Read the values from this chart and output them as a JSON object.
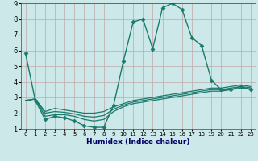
{
  "title": "",
  "xlabel": "Humidex (Indice chaleur)",
  "bg_color": "#cce8e8",
  "grid_color": "#c0a8a8",
  "line_color": "#1a7a6e",
  "xlim": [
    -0.5,
    23.5
  ],
  "ylim": [
    1,
    9
  ],
  "xticks": [
    0,
    1,
    2,
    3,
    4,
    5,
    6,
    7,
    8,
    9,
    10,
    11,
    12,
    13,
    14,
    15,
    16,
    17,
    18,
    19,
    20,
    21,
    22,
    23
  ],
  "yticks": [
    1,
    2,
    3,
    4,
    5,
    6,
    7,
    8,
    9
  ],
  "series": [
    {
      "x": [
        0,
        1,
        2,
        3,
        4,
        5,
        6,
        7,
        8,
        9,
        10,
        11,
        12,
        13,
        14,
        15,
        16,
        17,
        18,
        19,
        20,
        21,
        22,
        23
      ],
      "y": [
        5.8,
        2.8,
        1.6,
        1.8,
        1.7,
        1.5,
        1.2,
        1.1,
        1.1,
        2.5,
        5.3,
        7.8,
        8.0,
        6.1,
        8.7,
        9.0,
        8.6,
        6.8,
        6.3,
        4.1,
        3.5,
        3.5,
        3.7,
        3.5
      ],
      "marker": "D",
      "markersize": 2.5,
      "linewidth": 1.0
    },
    {
      "x": [
        0,
        1,
        2,
        3,
        4,
        5,
        6,
        7,
        8,
        9,
        10,
        11,
        12,
        13,
        14,
        15,
        16,
        17,
        18,
        19,
        20,
        21,
        22,
        23
      ],
      "y": [
        2.8,
        2.9,
        2.1,
        2.3,
        2.2,
        2.1,
        2.0,
        2.0,
        2.1,
        2.4,
        2.6,
        2.8,
        2.9,
        3.0,
        3.1,
        3.2,
        3.3,
        3.4,
        3.5,
        3.6,
        3.6,
        3.7,
        3.8,
        3.7
      ],
      "marker": null,
      "markersize": 0,
      "linewidth": 0.9
    },
    {
      "x": [
        0,
        1,
        2,
        3,
        4,
        5,
        6,
        7,
        8,
        9,
        10,
        11,
        12,
        13,
        14,
        15,
        16,
        17,
        18,
        19,
        20,
        21,
        22,
        23
      ],
      "y": [
        2.8,
        2.9,
        1.8,
        1.9,
        1.9,
        1.8,
        1.6,
        1.5,
        1.6,
        2.1,
        2.4,
        2.6,
        2.7,
        2.8,
        2.9,
        3.0,
        3.1,
        3.2,
        3.3,
        3.4,
        3.4,
        3.5,
        3.6,
        3.55
      ],
      "marker": null,
      "markersize": 0,
      "linewidth": 0.9
    },
    {
      "x": [
        0,
        1,
        2,
        3,
        4,
        5,
        6,
        7,
        8,
        9,
        10,
        11,
        12,
        13,
        14,
        15,
        16,
        17,
        18,
        19,
        20,
        21,
        22,
        23
      ],
      "y": [
        2.8,
        2.9,
        2.0,
        2.1,
        2.05,
        1.95,
        1.8,
        1.75,
        1.85,
        2.25,
        2.5,
        2.7,
        2.8,
        2.9,
        3.0,
        3.1,
        3.2,
        3.3,
        3.4,
        3.5,
        3.5,
        3.6,
        3.7,
        3.62
      ],
      "marker": null,
      "markersize": 0,
      "linewidth": 0.9
    }
  ]
}
